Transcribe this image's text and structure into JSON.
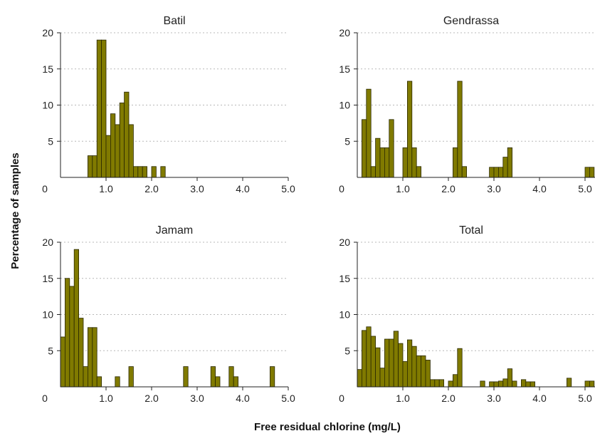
{
  "figure": {
    "xlabel": "Free residual chlorine (mg/L)",
    "ylabel": "Percentage of samples"
  },
  "colors": {
    "bar_fill": "#807a00",
    "bar_stroke": "#2a2800"
  },
  "chart_data": [
    {
      "type": "bar",
      "title": "Batil",
      "xlim": [
        0,
        5
      ],
      "ylim": [
        0,
        20
      ],
      "bin_width": 0.1,
      "grid": true,
      "xticks": [
        {
          "value": 0,
          "label": "0"
        },
        {
          "value": 1,
          "label": "1.0"
        },
        {
          "value": 2,
          "label": "2.0"
        },
        {
          "value": 3,
          "label": "3.0"
        },
        {
          "value": 4,
          "label": "4.0"
        },
        {
          "value": 5,
          "label": "5.0"
        }
      ],
      "yticks": [
        {
          "value": 5,
          "label": "5"
        },
        {
          "value": 10,
          "label": "10"
        },
        {
          "value": 15,
          "label": "15"
        },
        {
          "value": 20,
          "label": "20"
        }
      ],
      "x": [
        0.6,
        0.7,
        0.8,
        0.9,
        1.0,
        1.1,
        1.2,
        1.3,
        1.4,
        1.5,
        1.6,
        1.7,
        1.8,
        2.0,
        2.2
      ],
      "values": [
        3.0,
        3.0,
        19.0,
        19.0,
        5.8,
        8.8,
        7.3,
        10.3,
        11.8,
        7.3,
        1.5,
        1.5,
        1.5,
        1.5,
        1.5
      ]
    },
    {
      "type": "bar",
      "title": "Gendrassa",
      "xlim": [
        0,
        5
      ],
      "ylim": [
        0,
        20
      ],
      "bin_width": 0.1,
      "grid": true,
      "xticks": [
        {
          "value": 0,
          "label": "0"
        },
        {
          "value": 1,
          "label": "1.0"
        },
        {
          "value": 2,
          "label": "2.0"
        },
        {
          "value": 3,
          "label": "3.0"
        },
        {
          "value": 4,
          "label": "4.0"
        },
        {
          "value": 5,
          "label": "5.0"
        }
      ],
      "yticks": [
        {
          "value": 5,
          "label": "5"
        },
        {
          "value": 10,
          "label": "10"
        },
        {
          "value": 15,
          "label": "15"
        },
        {
          "value": 20,
          "label": "20"
        }
      ],
      "x": [
        0.1,
        0.2,
        0.3,
        0.4,
        0.5,
        0.6,
        0.7,
        1.0,
        1.1,
        1.2,
        1.3,
        2.1,
        2.2,
        2.3,
        2.9,
        3.0,
        3.1,
        3.2,
        3.3,
        5.0,
        5.1
      ],
      "values": [
        8.0,
        12.2,
        1.5,
        5.4,
        4.1,
        4.1,
        8.0,
        4.1,
        13.3,
        4.1,
        1.5,
        4.1,
        13.3,
        1.5,
        1.4,
        1.4,
        1.4,
        2.8,
        4.1,
        1.4,
        1.4
      ]
    },
    {
      "type": "bar",
      "title": "Jamam",
      "xlim": [
        0,
        5
      ],
      "ylim": [
        0,
        20
      ],
      "bin_width": 0.1,
      "grid": true,
      "xticks": [
        {
          "value": 0,
          "label": "0"
        },
        {
          "value": 1,
          "label": "1.0"
        },
        {
          "value": 2,
          "label": "2.0"
        },
        {
          "value": 3,
          "label": "3.0"
        },
        {
          "value": 4,
          "label": "4.0"
        },
        {
          "value": 5,
          "label": "5.0"
        }
      ],
      "yticks": [
        {
          "value": 5,
          "label": "5"
        },
        {
          "value": 10,
          "label": "10"
        },
        {
          "value": 15,
          "label": "15"
        },
        {
          "value": 20,
          "label": "20"
        }
      ],
      "x": [
        0.0,
        0.1,
        0.2,
        0.3,
        0.4,
        0.5,
        0.6,
        0.7,
        0.8,
        1.2,
        1.5,
        2.7,
        3.3,
        3.4,
        3.7,
        3.8,
        4.6
      ],
      "values": [
        6.9,
        15.0,
        13.9,
        19.0,
        9.5,
        2.8,
        8.2,
        8.2,
        1.4,
        1.4,
        2.8,
        2.8,
        2.8,
        1.4,
        2.8,
        1.4,
        2.8
      ]
    },
    {
      "type": "bar",
      "title": "Total",
      "xlim": [
        0,
        5
      ],
      "ylim": [
        0,
        20
      ],
      "bin_width": 0.1,
      "grid": true,
      "xticks": [
        {
          "value": 0,
          "label": "0"
        },
        {
          "value": 1,
          "label": "1.0"
        },
        {
          "value": 2,
          "label": "2.0"
        },
        {
          "value": 3,
          "label": "3.0"
        },
        {
          "value": 4,
          "label": "4.0"
        },
        {
          "value": 5,
          "label": "5.0"
        }
      ],
      "yticks": [
        {
          "value": 5,
          "label": "5"
        },
        {
          "value": 10,
          "label": "10"
        },
        {
          "value": 15,
          "label": "15"
        },
        {
          "value": 20,
          "label": "20"
        }
      ],
      "x": [
        0.0,
        0.1,
        0.2,
        0.3,
        0.4,
        0.5,
        0.6,
        0.7,
        0.8,
        0.9,
        1.0,
        1.1,
        1.2,
        1.3,
        1.4,
        1.5,
        1.6,
        1.7,
        1.8,
        2.0,
        2.1,
        2.2,
        2.7,
        2.9,
        3.0,
        3.1,
        3.2,
        3.3,
        3.4,
        3.6,
        3.7,
        3.8,
        4.6,
        5.0,
        5.1
      ],
      "values": [
        2.4,
        7.8,
        8.3,
        7.0,
        5.4,
        2.6,
        6.6,
        6.6,
        7.7,
        6.0,
        3.5,
        6.5,
        5.6,
        4.3,
        4.3,
        3.7,
        1.0,
        1.0,
        1.0,
        0.8,
        1.7,
        5.3,
        0.8,
        0.7,
        0.7,
        0.8,
        1.1,
        2.5,
        0.8,
        1.0,
        0.7,
        0.7,
        1.2,
        0.8,
        0.8
      ]
    }
  ]
}
